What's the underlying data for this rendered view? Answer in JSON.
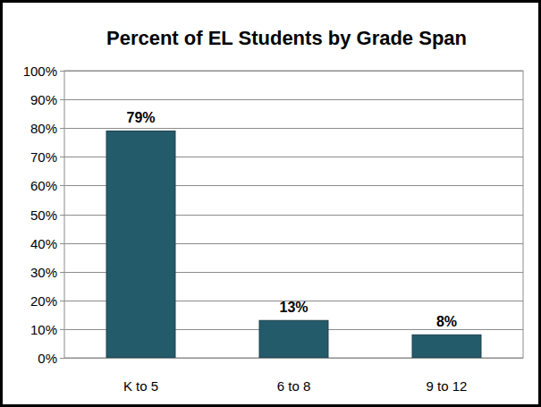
{
  "chart_data": {
    "type": "bar",
    "title": "Percent of EL Students by Grade Span",
    "categories": [
      "K to 5",
      "6 to 8",
      "9 to 12"
    ],
    "values": [
      79,
      13,
      8
    ],
    "value_labels": [
      "79%",
      "13%",
      "8%"
    ],
    "color": "#245b6b",
    "ylim": [
      0,
      100
    ],
    "yticks": [
      {
        "value": 0,
        "label": "0%"
      },
      {
        "value": 10,
        "label": "10%"
      },
      {
        "value": 20,
        "label": "20%"
      },
      {
        "value": 30,
        "label": "30%"
      },
      {
        "value": 40,
        "label": "40%"
      },
      {
        "value": 50,
        "label": "50%"
      },
      {
        "value": 60,
        "label": "60%"
      },
      {
        "value": 70,
        "label": "70%"
      },
      {
        "value": 80,
        "label": "80%"
      },
      {
        "value": 90,
        "label": "90%"
      },
      {
        "value": 100,
        "label": "100%"
      }
    ],
    "grid": true,
    "data_labels": true
  }
}
